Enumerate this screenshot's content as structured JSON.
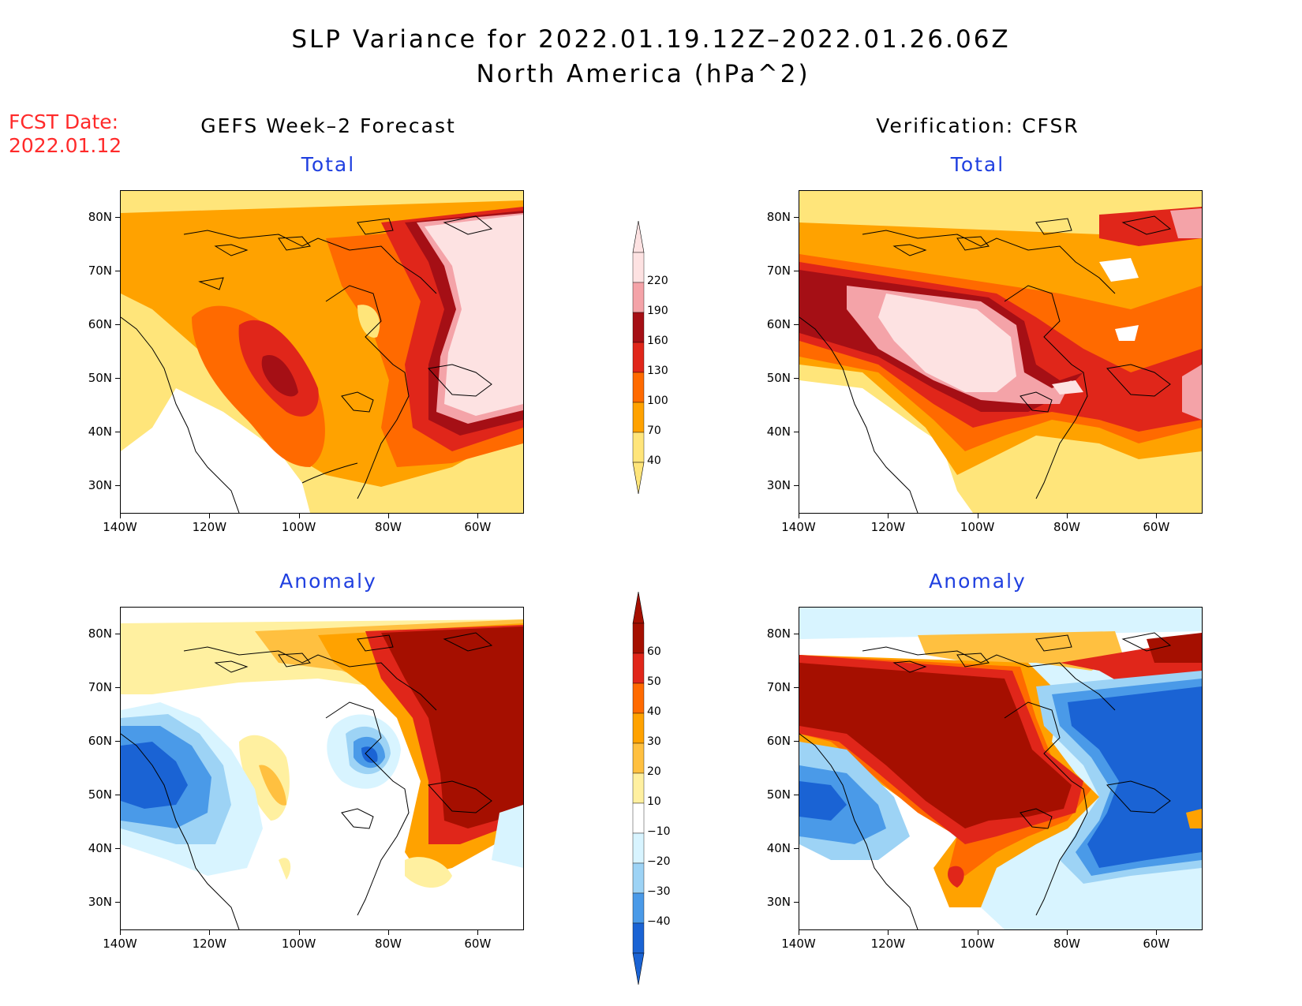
{
  "header": {
    "title": "SLP Variance for 2022.01.19.12Z–2022.01.26.06Z",
    "subtitle": "North America (hPa^2)",
    "fcst_label": "FCST Date:",
    "fcst_date": "2022.01.12"
  },
  "columns": {
    "left": "GEFS Week–2 Forecast",
    "right": "Verification: CFSR"
  },
  "panels": {
    "top_left": "Total",
    "top_right": "Total",
    "bottom_left": "Anomaly",
    "bottom_right": "Anomaly"
  },
  "axes": {
    "lat_labels": [
      "80N",
      "70N",
      "60N",
      "50N",
      "40N",
      "30N"
    ],
    "lon_labels": [
      "140W",
      "120W",
      "100W",
      "80W",
      "60W"
    ],
    "lat_range": [
      25,
      85
    ],
    "lon_range": [
      -140,
      -50
    ]
  },
  "colorbar_total": {
    "labels": [
      "220",
      "190",
      "160",
      "130",
      "100",
      "70",
      "40"
    ],
    "colors": [
      "#fde2e2",
      "#f4a3a8",
      "#a50f15",
      "#e0261a",
      "#ff6a00",
      "#ffa200",
      "#ffe57a"
    ]
  },
  "colorbar_anomaly": {
    "labels": [
      "60",
      "50",
      "40",
      "30",
      "20",
      "10",
      "−10",
      "−20",
      "−30",
      "−40"
    ],
    "colors": [
      "#a50f00",
      "#e0261a",
      "#ff6a00",
      "#ffa200",
      "#ffc040",
      "#fff0a0",
      "#ffffff",
      "#d8f4ff",
      "#9dd3f5",
      "#4a9ae8",
      "#1a63d4"
    ]
  }
}
